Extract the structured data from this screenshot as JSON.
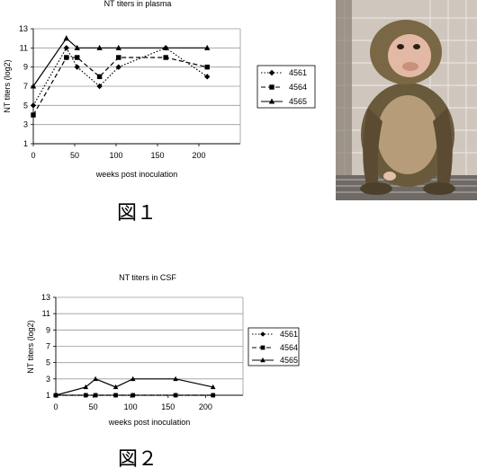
{
  "figure_captions": [
    "図１",
    "図２"
  ],
  "photo": {
    "subject": "macaque monkey photograph"
  },
  "chart_data": [
    {
      "type": "line",
      "title": "NT titers in plasma",
      "xlabel": "weeks post inoculation",
      "ylabel": "NT titers (log2)",
      "xlim": [
        0,
        250
      ],
      "ylim": [
        1,
        13
      ],
      "xticks": [
        0,
        50,
        100,
        150,
        200
      ],
      "yticks": [
        1,
        3,
        5,
        7,
        9,
        11,
        13
      ],
      "grid": "horizontal",
      "legend_position": "right",
      "series": [
        {
          "name": "4561",
          "marker": "diamond",
          "line": "dotted",
          "x": [
            0,
            40,
            53,
            80,
            103,
            160,
            210
          ],
          "y": [
            5,
            11,
            9,
            7,
            9,
            11,
            8
          ]
        },
        {
          "name": "4564",
          "marker": "square",
          "line": "dashed",
          "x": [
            0,
            40,
            53,
            80,
            103,
            160,
            210
          ],
          "y": [
            4,
            10,
            10,
            8,
            10,
            10,
            9
          ]
        },
        {
          "name": "4565",
          "marker": "triangle",
          "line": "solid",
          "x": [
            0,
            40,
            53,
            80,
            103,
            160,
            210
          ],
          "y": [
            7,
            12,
            11,
            11,
            11,
            11,
            11
          ]
        }
      ]
    },
    {
      "type": "line",
      "title": "NT titers in CSF",
      "xlabel": "weeks post inoculation",
      "ylabel": "NT titers (log2)",
      "xlim": [
        0,
        250
      ],
      "ylim": [
        1,
        13
      ],
      "xticks": [
        0,
        50,
        100,
        150,
        200
      ],
      "yticks": [
        1,
        3,
        5,
        7,
        9,
        11,
        13
      ],
      "grid": "horizontal",
      "legend_position": "right",
      "series": [
        {
          "name": "4561",
          "marker": "diamond",
          "line": "dotted",
          "x": [
            0,
            40,
            53,
            80,
            103,
            160,
            210
          ],
          "y": [
            1,
            1,
            1,
            1,
            1,
            1,
            1
          ]
        },
        {
          "name": "4564",
          "marker": "square",
          "line": "dashed",
          "x": [
            0,
            40,
            53,
            80,
            103,
            160,
            210
          ],
          "y": [
            1,
            1,
            1,
            1,
            1,
            1,
            1
          ]
        },
        {
          "name": "4565",
          "marker": "triangle",
          "line": "solid",
          "x": [
            0,
            40,
            53,
            80,
            103,
            160,
            210
          ],
          "y": [
            1,
            2,
            3,
            2,
            3,
            3,
            2
          ]
        }
      ]
    }
  ]
}
